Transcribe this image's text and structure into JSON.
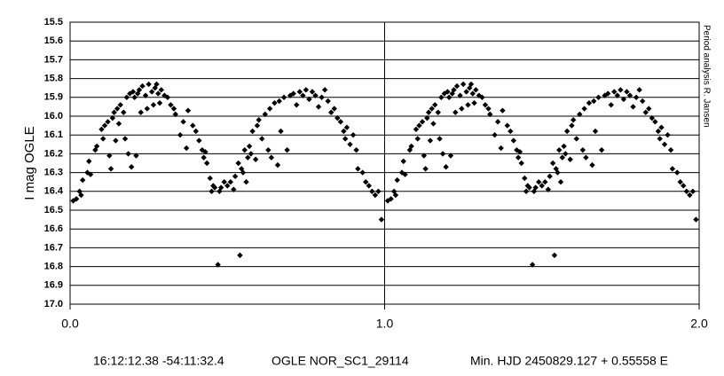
{
  "chart_data": {
    "type": "scatter",
    "y_label": "I mag OGLE",
    "side_note": "Period analysis R. Jansen",
    "caption": [
      "16:12:12.38 -54:11:32.4",
      "OGLE NOR_SC1_29114",
      "Min. HJD 2450829.127 + 0.55558 E"
    ],
    "color": "#000000",
    "xlim": [
      0,
      2
    ],
    "xticks": [
      {
        "value": 0,
        "label": "0.0"
      },
      {
        "value": 1,
        "label": "1.0"
      },
      {
        "value": 2,
        "label": "2.0"
      }
    ],
    "ylim": [
      15.5,
      17.0
    ],
    "y_inverted": true,
    "yticks": [
      15.5,
      15.6,
      15.7,
      15.8,
      15.9,
      {
        "value": 16,
        "label": "16.0"
      },
      16.1,
      16.2,
      16.3,
      16.4,
      16.5,
      16.6,
      16.7,
      16.8,
      16.9,
      {
        "value": 17,
        "label": "17.0"
      }
    ],
    "grid": true,
    "x": [
      0.01,
      0.02,
      0.03,
      0.035,
      0.04,
      0.055,
      0.06,
      0.065,
      0.08,
      0.085,
      0.1,
      0.105,
      0.11,
      0.12,
      0.125,
      0.13,
      0.135,
      0.14,
      0.145,
      0.15,
      0.155,
      0.16,
      0.17,
      0.175,
      0.18,
      0.185,
      0.19,
      0.195,
      0.2,
      0.205,
      0.21,
      0.215,
      0.22,
      0.225,
      0.23,
      0.24,
      0.245,
      0.25,
      0.26,
      0.265,
      0.27,
      0.275,
      0.28,
      0.285,
      0.29,
      0.3,
      0.31,
      0.32,
      0.33,
      0.335,
      0.35,
      0.36,
      0.37,
      0.375,
      0.39,
      0.4,
      0.41,
      0.42,
      0.425,
      0.43,
      0.435,
      0.445,
      0.45,
      0.455,
      0.46,
      0.47,
      0.475,
      0.48,
      0.49,
      0.5,
      0.51,
      0.52,
      0.525,
      0.535,
      0.54,
      0.545,
      0.55,
      0.555,
      0.56,
      0.565,
      0.57,
      0.575,
      0.58,
      0.59,
      0.595,
      0.6,
      0.61,
      0.62,
      0.63,
      0.635,
      0.64,
      0.65,
      0.66,
      0.665,
      0.67,
      0.68,
      0.69,
      0.7,
      0.71,
      0.72,
      0.73,
      0.74,
      0.75,
      0.76,
      0.77,
      0.78,
      0.79,
      0.8,
      0.81,
      0.82,
      0.83,
      0.84,
      0.85,
      0.86,
      0.87,
      0.875,
      0.88,
      0.89,
      0.9,
      0.91,
      0.915,
      0.93,
      0.94,
      0.95,
      0.96,
      0.97,
      0.98,
      0.99,
      1.01,
      1.02,
      1.03,
      1.035,
      1.04,
      1.055,
      1.06,
      1.065,
      1.08,
      1.085,
      1.1,
      1.105,
      1.11,
      1.12,
      1.125,
      1.13,
      1.135,
      1.14,
      1.145,
      1.15,
      1.155,
      1.16,
      1.17,
      1.175,
      1.18,
      1.185,
      1.19,
      1.195,
      1.2,
      1.205,
      1.21,
      1.215,
      1.22,
      1.225,
      1.23,
      1.24,
      1.245,
      1.25,
      1.26,
      1.265,
      1.27,
      1.275,
      1.28,
      1.285,
      1.29,
      1.3,
      1.31,
      1.32,
      1.33,
      1.335,
      1.35,
      1.36,
      1.37,
      1.375,
      1.39,
      1.4,
      1.41,
      1.42,
      1.425,
      1.43,
      1.435,
      1.445,
      1.45,
      1.455,
      1.46,
      1.47,
      1.475,
      1.48,
      1.49,
      1.5,
      1.51,
      1.52,
      1.525,
      1.535,
      1.54,
      1.545,
      1.55,
      1.555,
      1.56,
      1.565,
      1.57,
      1.575,
      1.58,
      1.59,
      1.595,
      1.6,
      1.61,
      1.62,
      1.63,
      1.635,
      1.64,
      1.65,
      1.66,
      1.665,
      1.67,
      1.68,
      1.69,
      1.7,
      1.71,
      1.72,
      1.73,
      1.74,
      1.75,
      1.76,
      1.77,
      1.78,
      1.79,
      1.8,
      1.81,
      1.82,
      1.83,
      1.84,
      1.85,
      1.86,
      1.87,
      1.875,
      1.88,
      1.89,
      1.9,
      1.91,
      1.915,
      1.93,
      1.94,
      1.95,
      1.96,
      1.97,
      1.98,
      1.99
    ],
    "values": [
      16.45,
      16.44,
      16.4,
      16.42,
      16.34,
      16.3,
      16.24,
      16.31,
      16.18,
      16.16,
      16.07,
      16.12,
      16.05,
      16.03,
      16.21,
      16.28,
      16.01,
      15.98,
      16.13,
      15.96,
      16.04,
      15.94,
      15.98,
      16.12,
      15.9,
      16.2,
      15.88,
      16.27,
      15.87,
      15.9,
      16.21,
      15.88,
      15.86,
      15.98,
      15.84,
      15.89,
      15.96,
      15.83,
      15.87,
      15.94,
      15.85,
      15.83,
      15.88,
      15.93,
      15.86,
      15.89,
      15.9,
      15.94,
      15.96,
      15.99,
      16.1,
      16.03,
      16.17,
      15.97,
      16.05,
      16.08,
      16.13,
      16.18,
      16.22,
      16.19,
      16.25,
      16.33,
      16.4,
      16.37,
      16.38,
      16.79,
      16.4,
      16.38,
      16.35,
      16.37,
      16.35,
      16.39,
      16.32,
      16.25,
      16.74,
      16.28,
      16.3,
      16.18,
      16.35,
      16.22,
      16.16,
      16.2,
      16.08,
      16.23,
      16.05,
      16.02,
      16.12,
      15.99,
      16.18,
      15.96,
      16.22,
      15.93,
      16.26,
      15.92,
      16.08,
      15.9,
      16.18,
      15.89,
      15.88,
      15.94,
      15.87,
      15.89,
      15.86,
      15.91,
      15.87,
      15.89,
      15.95,
      15.9,
      15.86,
      15.92,
      15.98,
      15.96,
      16.01,
      16.03,
      16.08,
      16.12,
      16.06,
      16.15,
      16.1,
      16.18,
      16.28,
      16.3,
      16.35,
      16.37,
      16.4,
      16.42,
      16.4,
      16.55,
      16.45,
      16.44,
      16.4,
      16.42,
      16.34,
      16.3,
      16.24,
      16.31,
      16.18,
      16.16,
      16.07,
      16.12,
      16.05,
      16.03,
      16.21,
      16.28,
      16.01,
      15.98,
      16.13,
      15.96,
      16.04,
      15.94,
      15.98,
      16.12,
      15.9,
      16.2,
      15.88,
      16.27,
      15.87,
      15.9,
      16.21,
      15.88,
      15.86,
      15.98,
      15.84,
      15.89,
      15.96,
      15.83,
      15.87,
      15.94,
      15.85,
      15.83,
      15.88,
      15.93,
      15.86,
      15.89,
      15.9,
      15.94,
      15.96,
      15.99,
      16.1,
      16.03,
      16.17,
      15.97,
      16.05,
      16.08,
      16.13,
      16.18,
      16.22,
      16.19,
      16.25,
      16.33,
      16.4,
      16.37,
      16.38,
      16.79,
      16.4,
      16.38,
      16.35,
      16.37,
      16.35,
      16.39,
      16.32,
      16.25,
      16.74,
      16.28,
      16.3,
      16.18,
      16.35,
      16.22,
      16.16,
      16.2,
      16.08,
      16.23,
      16.05,
      16.02,
      16.12,
      15.99,
      16.18,
      15.96,
      16.22,
      15.93,
      16.26,
      15.92,
      16.08,
      15.9,
      16.18,
      15.89,
      15.88,
      15.94,
      15.87,
      15.89,
      15.86,
      15.91,
      15.87,
      15.89,
      15.95,
      15.9,
      15.86,
      15.92,
      15.98,
      15.96,
      16.01,
      16.03,
      16.08,
      16.12,
      16.06,
      16.15,
      16.1,
      16.18,
      16.28,
      16.3,
      16.35,
      16.37,
      16.4,
      16.42,
      16.4,
      16.55
    ]
  }
}
